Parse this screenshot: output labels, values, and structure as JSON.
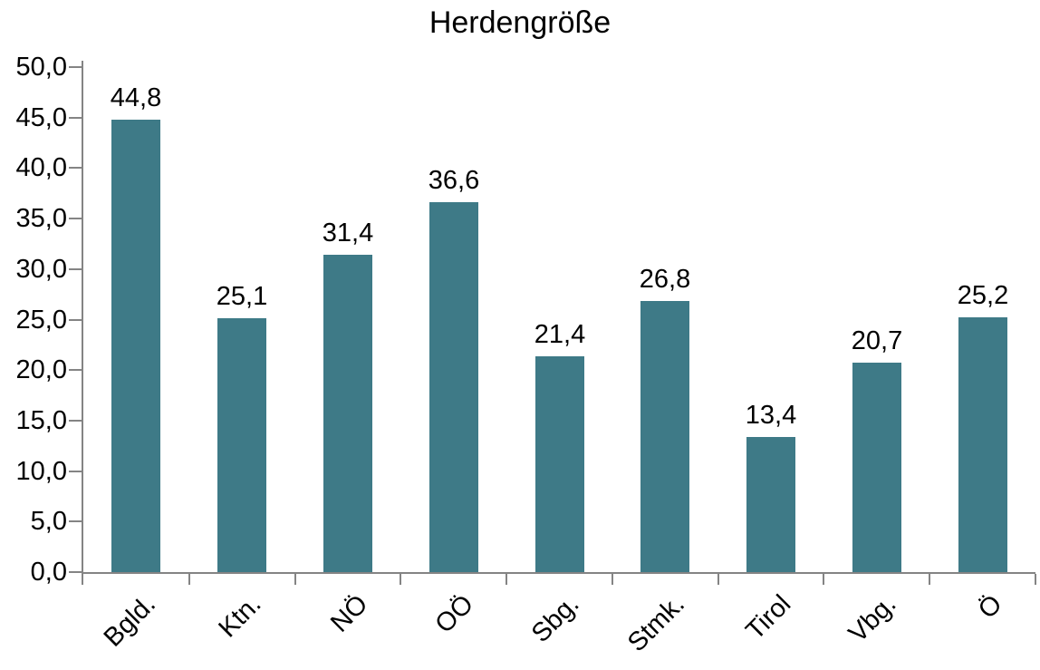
{
  "chart": {
    "bar_color": "#3E7A87",
    "axis_color": "#848484",
    "text_color": "#000000",
    "background_color": "#ffffff"
  },
  "chart_data": {
    "type": "bar",
    "title": "Herdengröße",
    "categories": [
      "Bgld.",
      "Ktn.",
      "NÖ",
      "OÖ",
      "Sbg.",
      "Stmk.",
      "Tirol",
      "Vbg.",
      "Ö"
    ],
    "values": [
      44.8,
      25.1,
      31.4,
      36.6,
      21.4,
      26.8,
      13.4,
      20.7,
      25.2
    ],
    "value_labels": [
      "44,8",
      "25,1",
      "31,4",
      "36,6",
      "21,4",
      "26,8",
      "13,4",
      "20,7",
      "25,2"
    ],
    "xlabel": "",
    "ylabel": "",
    "ylim": [
      0,
      50
    ],
    "ytick_step": 5,
    "ytick_labels": [
      "0,0",
      "5,0",
      "10,0",
      "15,0",
      "20,0",
      "25,0",
      "30,0",
      "35,0",
      "40,0",
      "45,0",
      "50,0"
    ],
    "grid": false,
    "legend": false,
    "decimal_separator": ",",
    "category_label_rotation_deg": -45
  }
}
